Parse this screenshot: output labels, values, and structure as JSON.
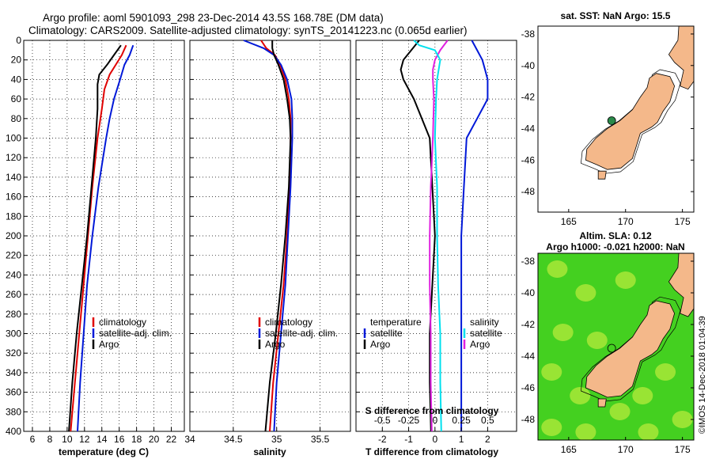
{
  "title_line1": "Argo profile: aoml 5901093_298 23-Dec-2014 43.5S 168.78E (DM data)",
  "title_line2": "Climatology: CARS2009. Satellite-adjusted climatology: synTS_20141223.nc (0.065d earlier)",
  "colors": {
    "red": "#e00000",
    "blue": "#0018d8",
    "black": "#000000",
    "magenta": "#e020e0",
    "cyan": "#00e0ee",
    "land": "#f4b88a",
    "sla_bg": "#44d020",
    "sla_hi": "#a8e838"
  },
  "watermark": "©IMOS 14-Dec-2018 01:04:39",
  "chart_data": [
    {
      "type": "line",
      "title": "",
      "xlabel": "temperature (deg C)",
      "ylabel": "",
      "xlim": [
        5,
        23.5
      ],
      "ylim": [
        400,
        0
      ],
      "grid": true,
      "xticks": [
        "6",
        "8",
        "10",
        "12",
        "14",
        "16",
        "18",
        "20",
        "22"
      ],
      "yticks": [
        "0",
        "20",
        "40",
        "60",
        "80",
        "100",
        "120",
        "140",
        "160",
        "180",
        "200",
        "220",
        "240",
        "260",
        "280",
        "300",
        "320",
        "340",
        "360",
        "380",
        "400"
      ],
      "legend": [
        "climatology",
        "satellite-adj. clim.",
        "Argo"
      ],
      "series": [
        {
          "name": "climatology",
          "color": "red",
          "depth": [
            5,
            15,
            25,
            35,
            50,
            70,
            100,
            150,
            200,
            250,
            300,
            350,
            400
          ],
          "values": [
            16.8,
            16.3,
            15.6,
            14.9,
            14.3,
            14.0,
            13.5,
            12.9,
            12.4,
            11.9,
            11.4,
            10.9,
            10.4
          ]
        },
        {
          "name": "satellite-adj. clim.",
          "color": "blue",
          "depth": [
            5,
            15,
            25,
            40,
            60,
            80,
            100,
            150,
            200,
            250,
            300,
            350,
            400
          ],
          "values": [
            17.6,
            17.2,
            16.6,
            16.1,
            15.4,
            14.9,
            14.5,
            13.6,
            12.9,
            12.3,
            11.9,
            11.5,
            11.2
          ]
        },
        {
          "name": "Argo",
          "color": "black",
          "depth": [
            5,
            15,
            25,
            35,
            45,
            70,
            100,
            150,
            200,
            250,
            300,
            350,
            400
          ],
          "values": [
            16.2,
            15.4,
            14.6,
            13.7,
            13.5,
            13.5,
            13.3,
            12.8,
            12.3,
            11.7,
            11.1,
            10.6,
            10.2
          ]
        }
      ]
    },
    {
      "type": "line",
      "xlabel": "salinity",
      "xlim": [
        34,
        35.85
      ],
      "ylim": [
        400,
        0
      ],
      "grid": true,
      "xticks": [
        "34",
        "34.5",
        "35",
        "35.5"
      ],
      "legend": [
        "climatology",
        "satellite-adj. clim.",
        "Argo"
      ],
      "series": [
        {
          "name": "climatology",
          "color": "red",
          "depth": [
            0,
            8,
            15,
            25,
            40,
            60,
            80,
            100,
            150,
            200,
            250,
            300,
            350,
            400
          ],
          "values": [
            34.82,
            34.88,
            34.98,
            35.04,
            35.1,
            35.14,
            35.16,
            35.16,
            35.15,
            35.12,
            35.08,
            35.02,
            34.96,
            34.92
          ]
        },
        {
          "name": "satellite-adj. clim.",
          "color": "blue",
          "depth": [
            0,
            8,
            15,
            25,
            40,
            60,
            80,
            100,
            150,
            200,
            250,
            300,
            350,
            400
          ],
          "values": [
            34.62,
            34.85,
            34.97,
            35.05,
            35.12,
            35.17,
            35.18,
            35.18,
            35.16,
            35.13,
            35.1,
            35.05,
            35.0,
            34.97
          ]
        },
        {
          "name": "Argo",
          "color": "black",
          "depth": [
            0,
            8,
            15,
            25,
            40,
            60,
            80,
            100,
            150,
            200,
            250,
            300,
            350,
            400
          ],
          "values": [
            34.95,
            34.95,
            34.97,
            35.02,
            35.08,
            35.12,
            35.15,
            35.16,
            35.14,
            35.1,
            35.05,
            34.99,
            34.92,
            34.87
          ]
        }
      ]
    },
    {
      "type": "line",
      "xlabel": "T difference from climatology",
      "xlim": [
        -3,
        3.1
      ],
      "ylim": [
        400,
        0
      ],
      "grid": true,
      "xticks": [
        "-2",
        "-1",
        "0",
        "1",
        "2"
      ],
      "secondary_xlabel": "S difference from climatology",
      "secondary_xticks": [
        "-0.5",
        "-0.25",
        "0",
        "0.25",
        "0.5"
      ],
      "legend_temperature": "temperature",
      "legend_salinity": "salinity",
      "legend_satellite": "satellite",
      "legend_argo": "Argo",
      "series": [
        {
          "name": "T Argo-clim",
          "color": "black",
          "depth": [
            0,
            10,
            20,
            30,
            40,
            60,
            80,
            100,
            150,
            200,
            250,
            300,
            350,
            400
          ],
          "values": [
            -0.6,
            -0.9,
            -1.2,
            -1.3,
            -1.2,
            -0.8,
            -0.5,
            -0.2,
            -0.1,
            0.0,
            -0.1,
            -0.2,
            -0.2,
            -0.15
          ]
        },
        {
          "name": "T satellite-clim",
          "color": "blue",
          "depth": [
            0,
            10,
            20,
            30,
            40,
            60,
            80,
            100,
            150,
            200,
            250,
            300,
            350,
            400
          ],
          "values": [
            1.4,
            1.6,
            1.8,
            1.9,
            2.0,
            2.0,
            1.6,
            1.2,
            1.1,
            1.0,
            1.0,
            1.0,
            1.0,
            1.0
          ]
        },
        {
          "name": "S Argo-clim",
          "color": "magenta",
          "depth": [
            0,
            10,
            20,
            30,
            40,
            60,
            100,
            150,
            200,
            250,
            300,
            350,
            400
          ],
          "values": [
            0.12,
            0.05,
            0.0,
            -0.02,
            -0.02,
            -0.01,
            -0.02,
            -0.04,
            -0.05,
            -0.05,
            -0.04,
            -0.04,
            -0.03
          ]
        },
        {
          "name": "S satellite-clim",
          "color": "cyan",
          "depth": [
            0,
            5,
            10,
            20,
            40,
            60,
            100,
            150,
            200,
            250,
            300,
            350,
            400
          ],
          "values": [
            -0.2,
            -0.15,
            0.0,
            0.05,
            0.02,
            0.01,
            0.0,
            0.02,
            0.02,
            0.03,
            0.05,
            0.05,
            0.06
          ]
        }
      ]
    },
    {
      "type": "map",
      "title": "sat. SST: NaN Argo: 15.5",
      "xlim": [
        162.3,
        176
      ],
      "ylim": [
        -49.3,
        -37.5
      ],
      "xticks": [
        "165",
        "170",
        "175"
      ],
      "yticks": [
        "-38",
        "-40",
        "-42",
        "-44",
        "-46",
        "-48"
      ],
      "float_position": {
        "lon": 168.78,
        "lat": -43.5
      }
    },
    {
      "type": "map",
      "title": "Altim. SLA: 0.12",
      "subtitle": "Argo h1000: -0.021 h2000: NaN",
      "xlim": [
        162.3,
        176
      ],
      "ylim": [
        -49.3,
        -37.5
      ],
      "xticks": [
        "165",
        "170",
        "175"
      ],
      "yticks": [
        "-38",
        "-40",
        "-42",
        "-44",
        "-46",
        "-48"
      ],
      "float_position": {
        "lon": 168.78,
        "lat": -43.5
      }
    }
  ]
}
